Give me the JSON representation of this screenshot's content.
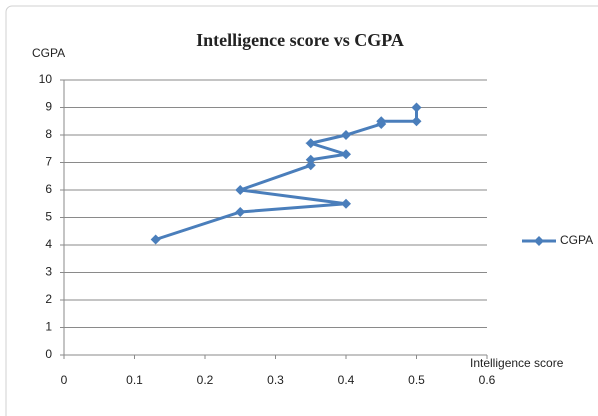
{
  "chart_data": {
    "type": "line",
    "title": "Intelligence score vs CGPA",
    "x_label": "Intelligence score",
    "y_label": "CGPA",
    "x": [
      0.13,
      0.25,
      0.4,
      0.25,
      0.35,
      0.35,
      0.4,
      0.35,
      0.4,
      0.45,
      0.45,
      0.5,
      0.5
    ],
    "series": [
      {
        "name": "CGPA",
        "color": "#4a7ebb",
        "values": [
          4.2,
          5.2,
          5.5,
          6.0,
          6.9,
          7.1,
          7.3,
          7.7,
          8.0,
          8.4,
          8.5,
          8.5,
          9.0
        ]
      }
    ],
    "xlim": [
      0,
      0.6
    ],
    "xticks": [
      0,
      0.1,
      0.2,
      0.3,
      0.4,
      0.5,
      0.6
    ],
    "ylim": [
      0,
      10
    ],
    "yticks": [
      0,
      1,
      2,
      3,
      4,
      5,
      6,
      7,
      8,
      9,
      10
    ],
    "grid": true,
    "legend": "right"
  }
}
